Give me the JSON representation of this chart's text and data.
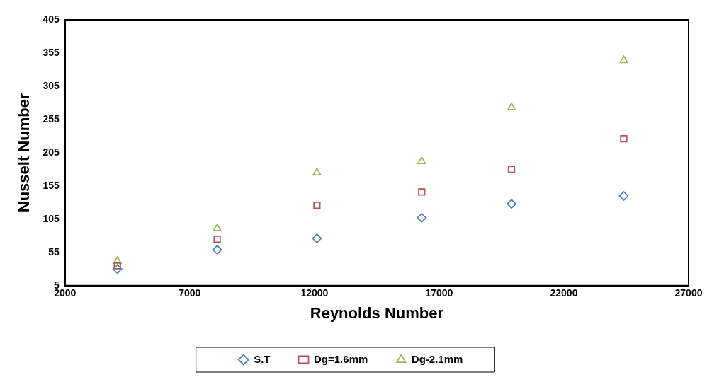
{
  "chart_data": {
    "type": "scatter",
    "xlabel": "Reynolds Number",
    "ylabel": "Nusselt Number",
    "xlim": [
      2000,
      27000
    ],
    "xticks": [
      2000,
      7000,
      12000,
      17000,
      22000,
      27000
    ],
    "ylim": [
      5,
      405
    ],
    "yticks": [
      5,
      55,
      105,
      155,
      205,
      255,
      305,
      355,
      405
    ],
    "grid": false,
    "legend": "bottom",
    "series": [
      {
        "name": "S.T",
        "color": "#4f81bd",
        "marker": "diamond",
        "x": [
          4100,
          8100,
          12100,
          16300,
          19900,
          24400
        ],
        "values": [
          30,
          59,
          76,
          107,
          128,
          140
        ]
      },
      {
        "name": "Dg=1.6mm",
        "color": "#c0504d",
        "marker": "square",
        "x": [
          4100,
          8100,
          12100,
          16300,
          19900,
          24400
        ],
        "values": [
          35,
          75,
          126,
          146,
          180,
          226
        ]
      },
      {
        "name": "Dg-2.1mm",
        "color": "#9bbb59",
        "marker": "triangle",
        "x": [
          4100,
          8100,
          12100,
          16300,
          19900,
          24400
        ],
        "values": [
          42,
          91,
          175,
          192,
          273,
          344
        ]
      }
    ]
  }
}
